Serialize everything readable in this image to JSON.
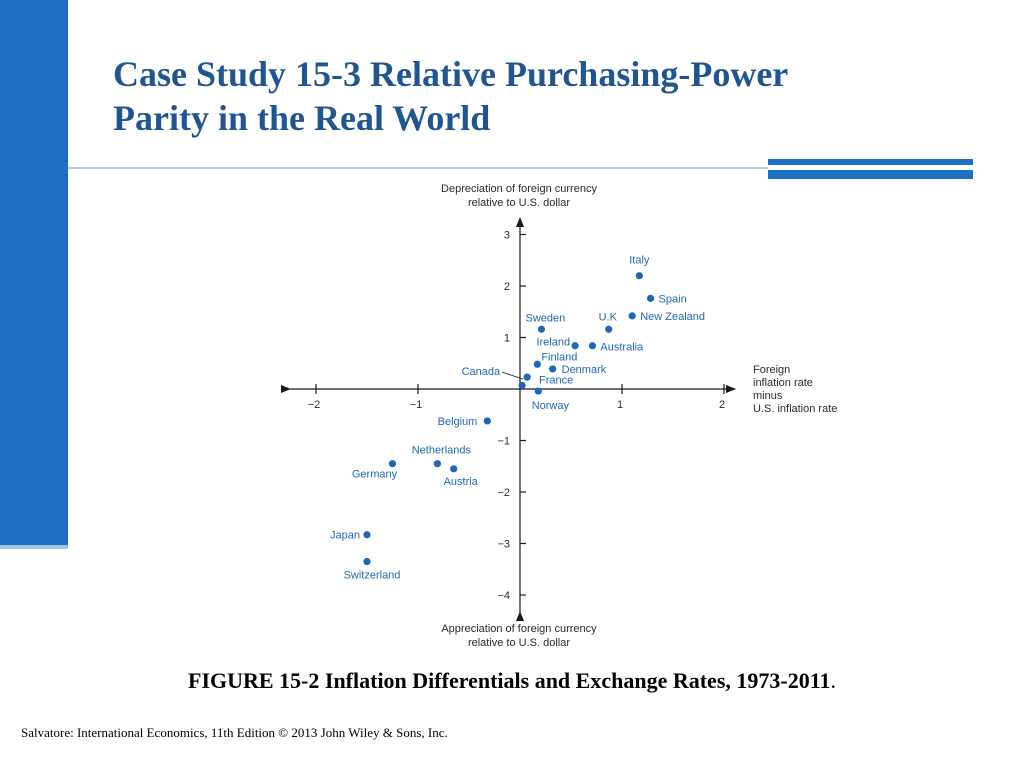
{
  "slide": {
    "title_line1": "Case Study 15-3  Relative Purchasing-Power",
    "title_line2": "Parity in the Real World",
    "caption": "FIGURE 15-2 Inflation Differentials and Exchange Rates, 1973-2011",
    "caption_period": ".",
    "footer": "Salvatore: International Economics, 11th Edition  © 2013 John Wiley & Sons, Inc."
  },
  "colors": {
    "accent": "#1d6fc4",
    "title": "#1f5591",
    "point": "#1c67b8"
  },
  "chart_data": {
    "type": "scatter",
    "title": "",
    "ylabel_top": [
      "Depreciation of foreign currency",
      "relative to U.S. dollar"
    ],
    "ylabel_bottom": [
      "Appreciation of foreign currency",
      "relative to U.S. dollar"
    ],
    "xlabel": [
      "Foreign",
      "inflation rate",
      "minus",
      "U.S. inflation rate"
    ],
    "xlim": [
      -2,
      2
    ],
    "ylim": [
      -4,
      3
    ],
    "x_ticks": [
      "−2",
      "−1",
      "1",
      "2"
    ],
    "x_tick_values": [
      -2,
      -1,
      1,
      2
    ],
    "y_ticks": [
      "3",
      "2",
      "1",
      "−1",
      "−2",
      "−3",
      "−4"
    ],
    "y_tick_values": [
      3,
      2,
      1,
      -1,
      -2,
      -3,
      -4
    ],
    "grid": false,
    "points": [
      {
        "label": "Italy",
        "x": 1.17,
        "y": 2.2
      },
      {
        "label": "Spain",
        "x": 1.28,
        "y": 1.76
      },
      {
        "label": "New Zealand",
        "x": 1.1,
        "y": 1.42
      },
      {
        "label": "U.K",
        "x": 0.87,
        "y": 1.16
      },
      {
        "label": "Sweden",
        "x": 0.21,
        "y": 1.16
      },
      {
        "label": "Ireland",
        "x": 0.54,
        "y": 0.84
      },
      {
        "label": "Australia",
        "x": 0.71,
        "y": 0.84
      },
      {
        "label": "Finland",
        "x": 0.17,
        "y": 0.48
      },
      {
        "label": "Denmark",
        "x": 0.32,
        "y": 0.39
      },
      {
        "label": "Canada",
        "x": 0.07,
        "y": 0.23
      },
      {
        "label": "France",
        "x": 0.02,
        "y": 0.07
      },
      {
        "label": "Norway",
        "x": 0.18,
        "y": -0.04
      },
      {
        "label": "Belgium",
        "x": -0.32,
        "y": -0.62
      },
      {
        "label": "Netherlands",
        "x": -0.81,
        "y": -1.45
      },
      {
        "label": "Austria",
        "x": -0.65,
        "y": -1.55
      },
      {
        "label": "Germany",
        "x": -1.25,
        "y": -1.45
      },
      {
        "label": "Japan",
        "x": -1.5,
        "y": -2.83
      },
      {
        "label": "Switzerland",
        "x": -1.5,
        "y": -3.35
      }
    ]
  }
}
